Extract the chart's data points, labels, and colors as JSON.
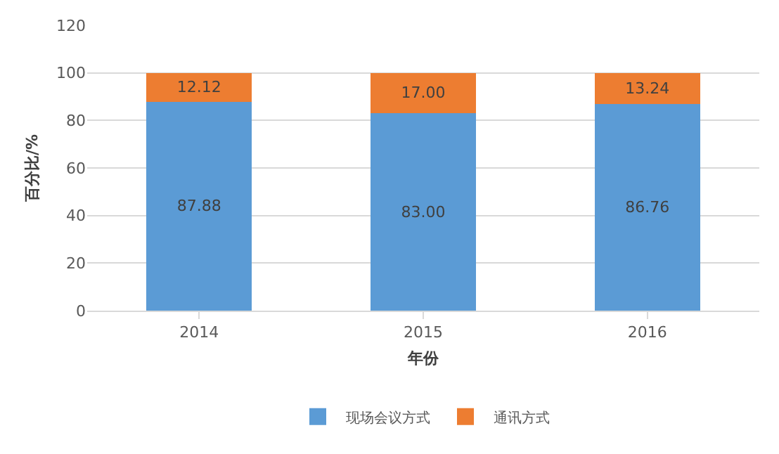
{
  "chart_data": {
    "type": "bar",
    "stacked": true,
    "xlabel": "年份",
    "ylabel": "百分比/%",
    "categories": [
      "2014",
      "2015",
      "2016"
    ],
    "series": [
      {
        "name": "现场会议方式",
        "color": "#5b9bd5",
        "values": [
          87.88,
          83.0,
          86.76
        ],
        "value_labels": [
          "87.88",
          "83.00",
          "86.76"
        ]
      },
      {
        "name": "通讯方式",
        "color": "#ed7d31",
        "values": [
          12.12,
          17.0,
          13.24
        ],
        "value_labels": [
          "12.12",
          "17.00",
          "13.24"
        ]
      }
    ],
    "ylim": [
      0,
      120
    ],
    "yticks": [
      0,
      20,
      40,
      60,
      80,
      100,
      120
    ],
    "grid": "y",
    "legend": "bottom"
  }
}
